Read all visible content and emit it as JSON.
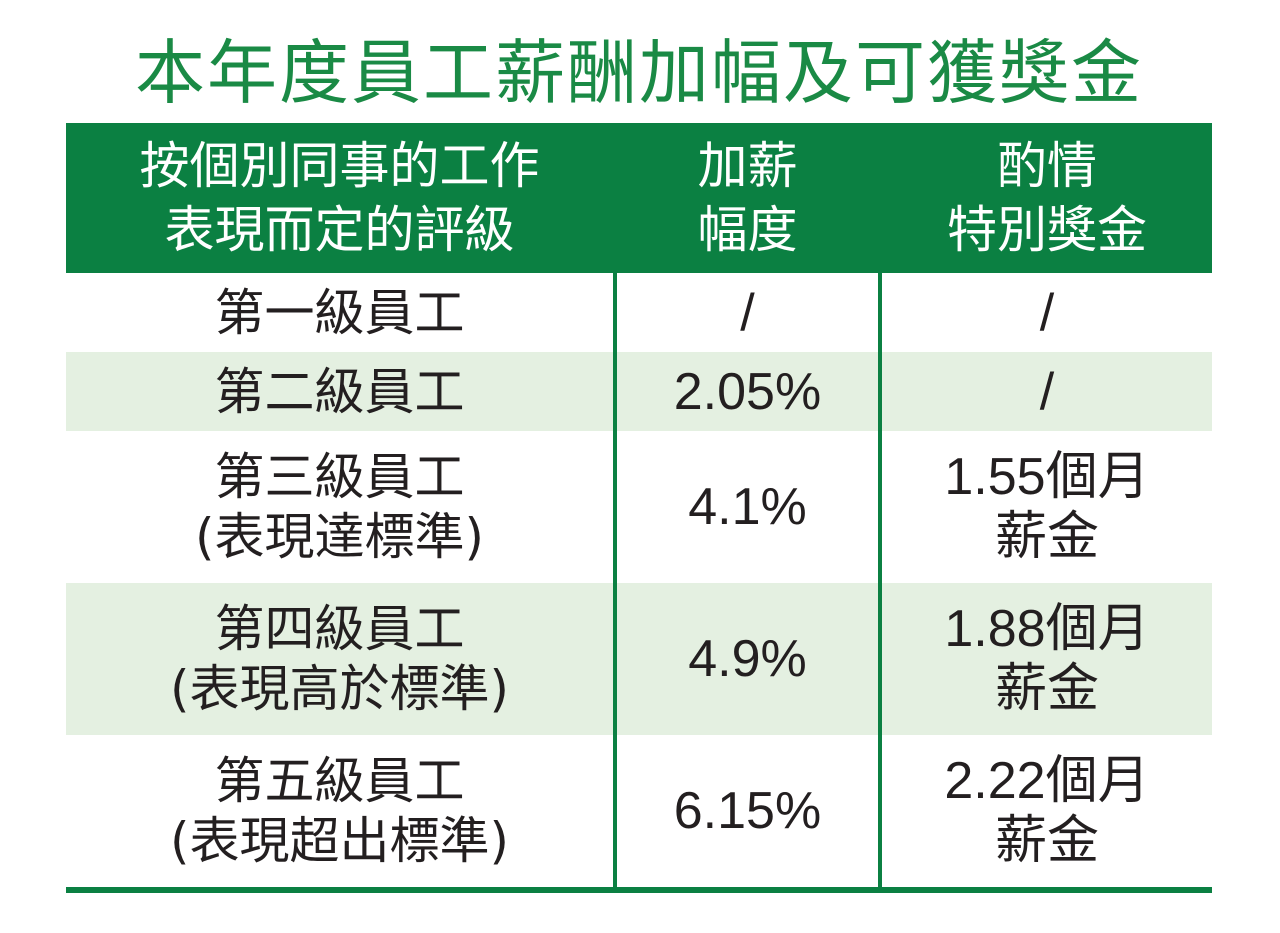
{
  "title": "本年度員工薪酬加幅及可獲獎金",
  "header": {
    "col1": [
      "按個別同事的工作",
      "表現而定的評級"
    ],
    "col2": [
      "加薪",
      "幅度"
    ],
    "col3": [
      "酌情",
      "特別獎金"
    ]
  },
  "rows": [
    {
      "grade": [
        "第一級員工"
      ],
      "raise": "/",
      "bonus": [
        "/"
      ]
    },
    {
      "grade": [
        "第二級員工"
      ],
      "raise": "2.05%",
      "bonus": [
        "/"
      ]
    },
    {
      "grade": [
        "第三級員工",
        "(表現達標準)"
      ],
      "raise": "4.1%",
      "bonus": [
        "1.55個月",
        "薪金"
      ]
    },
    {
      "grade": [
        "第四級員工",
        "(表現高於標準)"
      ],
      "raise": "4.9%",
      "bonus": [
        "1.88個月",
        "薪金"
      ]
    },
    {
      "grade": [
        "第五級員工",
        "(表現超出標準)"
      ],
      "raise": "6.15%",
      "bonus": [
        "2.22個月",
        "薪金"
      ]
    }
  ],
  "colors": {
    "green": "#0b8042",
    "title_green": "#1a8a45",
    "row_tint": "#e4f0e1"
  }
}
